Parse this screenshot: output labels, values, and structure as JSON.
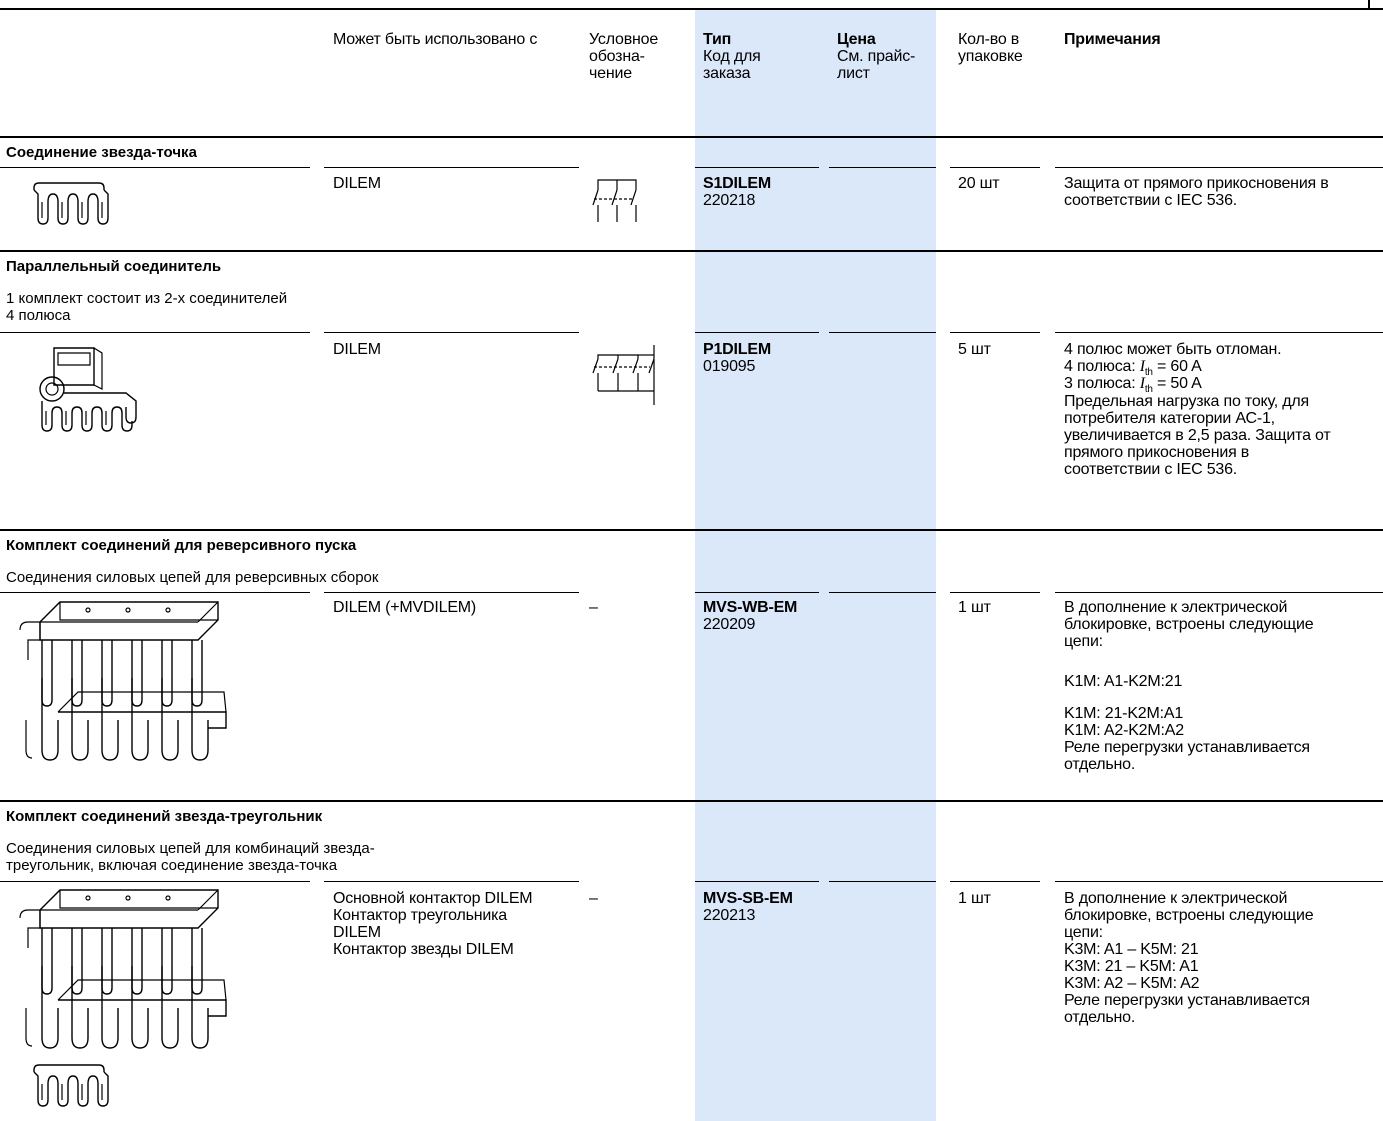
{
  "header": {
    "used_with": "Может быть использовано с",
    "symbol": "Условное\nобозна-\nчение",
    "type_bold": "Тип",
    "type_code": "Код для\nзаказа",
    "price_bold": "Цена",
    "price_note": "См. прайс-\nлист",
    "qty": "Кол-во в\nупаковке",
    "notes": "Примечания"
  },
  "sections": [
    {
      "title": "Соединение звезда-точка",
      "used_with": "DILEM",
      "type": "S1DILEM",
      "code": "220218",
      "qty": "20 шт",
      "notes": "Защита от прямого прикосновения в\nсоответствии с IEC 536."
    },
    {
      "title": "Параллельный соединитель",
      "subtitle": "1 комплект состоит из  2-х соединителей\n4 полюса",
      "used_with": "DILEM",
      "type": "P1DILEM",
      "code": "019095",
      "qty": "5 шт",
      "notes_line1": "4 полюс может быть отломан.",
      "notes_line2_pre": "4 полюса: ",
      "notes_line2_sym": "I",
      "notes_line2_sub": "th",
      "notes_line2_post": " = 60 A",
      "notes_line3_pre": "3 полюса: ",
      "notes_line3_sym": "I",
      "notes_line3_sub": "th",
      "notes_line3_post": " = 50 A",
      "notes_rest": "Предельная нагрузка по току, для\nпотребителя категории АС-1,\nувеличивается в 2,5 раза. Защита от\nпрямого прикосновения в\nсоответствии с IEC 536."
    },
    {
      "title": "Комплект соединений для реверсивного пуска",
      "subtitle": "Соединения силовых цепей для реверсивных сборок",
      "used_with": "DILEM (+MVDILEM)",
      "symbol": "–",
      "type": "MVS-WB-EM",
      "code": "220209",
      "qty": "1 шт",
      "notes_a": "В дополнение к электрической\nблокировке, встроены следующие\nцепи:",
      "notes_b": "K1M: A1-K2M:21",
      "notes_c": "K1M: 21-K2M:A1\nK1M: A2-K2M:A2\nРеле перегрузки устанавливается\nотдельно."
    },
    {
      "title": "Комплект соединений звезда-треугольник",
      "subtitle": "Соединения силовых цепей для комбинаций звезда-\nтреугольник, включая соединение звезда-точка",
      "used_with": "Основной контактор DILEM\nКонтактор треугольника\nDILEM\nКонтактор звезды DILEM",
      "symbol": "–",
      "type": "MVS-SB-EM",
      "code": "220213",
      "qty": "1 шт",
      "notes": "В дополнение к электрической\nблокировке, встроены следующие\nцепи:\nK3M: A1 – K5M: 21\nK3M: 21 – K5M: A1\nK3M: A2 – K5M: A2\nРеле перегрузки устанавливается\nотдельно."
    }
  ]
}
